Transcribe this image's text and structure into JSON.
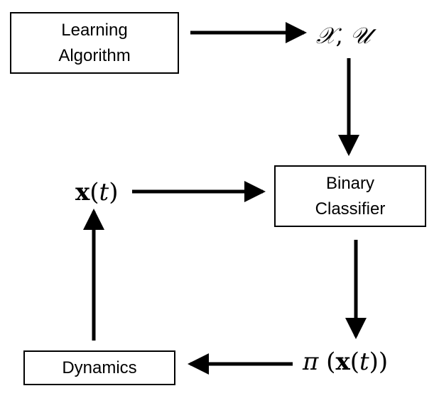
{
  "nodes": {
    "learning_algorithm": {
      "line1": "Learning",
      "line2": "Algorithm"
    },
    "binary_classifier": {
      "line1": "Binary",
      "line2": "Classifier"
    },
    "dynamics": {
      "label": "Dynamics"
    }
  },
  "symbols": {
    "sets": {
      "x": "𝒳",
      "sep": ", ",
      "u": "𝒰"
    },
    "state": {
      "x": "x",
      "open": "(",
      "t": "t",
      "close": ")"
    },
    "policy": {
      "pi": "π",
      "open": " (",
      "x": "x",
      "open2": "(",
      "t": "t",
      "close": "))"
    }
  }
}
